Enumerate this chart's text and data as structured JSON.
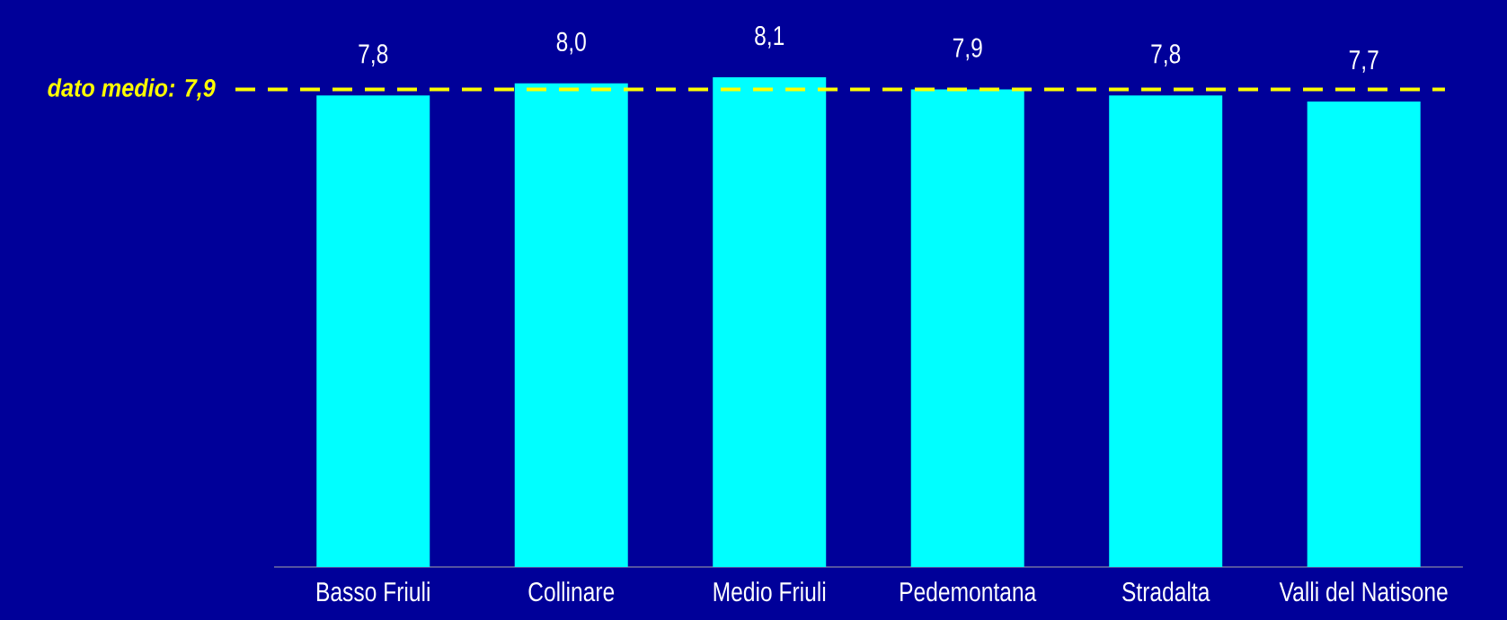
{
  "chart_data": {
    "type": "bar",
    "categories": [
      "Basso Friuli",
      "Collinare",
      "Medio Friuli",
      "Pedemontana",
      "Stradalta",
      "Valli del Natisone"
    ],
    "values": [
      7.8,
      8.0,
      8.1,
      7.9,
      7.8,
      7.7
    ],
    "value_labels": [
      "7,8",
      "8,0",
      "8,1",
      "7,9",
      "7,8",
      "7,7"
    ],
    "color": "#00ffff",
    "tick_labels": "x",
    "ref_lines": [
      {
        "axis": "y",
        "value": 7.9,
        "label": "dato medio: 7,9",
        "color": "#ffff00",
        "line_style": "dashed"
      }
    ]
  }
}
